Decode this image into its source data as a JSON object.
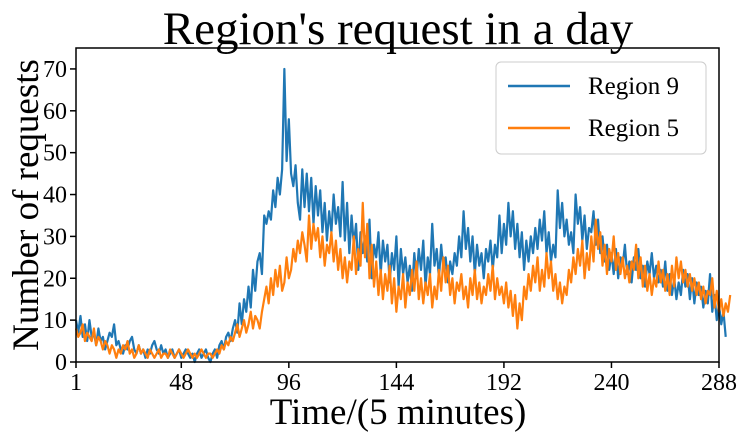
{
  "chart_data": {
    "type": "line",
    "title": "Region's request in a day",
    "xlabel": "Time/(5 minutes)",
    "ylabel": "Number of requests",
    "xlim": [
      1,
      288
    ],
    "ylim": [
      0,
      75
    ],
    "xticks": [
      1,
      48,
      96,
      144,
      192,
      240,
      288
    ],
    "yticks": [
      0,
      10,
      20,
      30,
      40,
      50,
      60,
      70
    ],
    "grid": false,
    "legend_position": "top-right",
    "colors": {
      "Region 9": "#1f77b4",
      "Region 5": "#ff7f0e"
    },
    "series": [
      {
        "name": "Region 9",
        "values": [
          10,
          7,
          11,
          6,
          9,
          5,
          10,
          6,
          7,
          4,
          8,
          5,
          6,
          3,
          5,
          7,
          6,
          9,
          4,
          5,
          3,
          2,
          4,
          3,
          5,
          6,
          3,
          2,
          4,
          2,
          3,
          1,
          3,
          2,
          4,
          5,
          3,
          2,
          4,
          2,
          3,
          1,
          2,
          3,
          1,
          2,
          3,
          1,
          2,
          3,
          2,
          1,
          2,
          0,
          2,
          3,
          1,
          2,
          3,
          1,
          0,
          2,
          3,
          1,
          4,
          5,
          3,
          6,
          7,
          5,
          8,
          10,
          7,
          14,
          9,
          15,
          12,
          18,
          13,
          22,
          17,
          24,
          26,
          21,
          35,
          33,
          36,
          34,
          41,
          37,
          44,
          40,
          46,
          70,
          48,
          58,
          45,
          42,
          47,
          38,
          34,
          46,
          37,
          45,
          36,
          44,
          33,
          42,
          35,
          41,
          31,
          38,
          29,
          36,
          31,
          40,
          33,
          37,
          30,
          43,
          29,
          38,
          26,
          35,
          28,
          33,
          22,
          31,
          26,
          30,
          24,
          34,
          20,
          28,
          25,
          31,
          21,
          29,
          24,
          28,
          19,
          26,
          22,
          30,
          18,
          27,
          21,
          25,
          19,
          23,
          17,
          26,
          20,
          27,
          22,
          29,
          18,
          25,
          21,
          33,
          23,
          27,
          20,
          28,
          22,
          25,
          19,
          24,
          21,
          26,
          23,
          30,
          25,
          36,
          27,
          32,
          24,
          30,
          21,
          28,
          23,
          26,
          20,
          27,
          24,
          29,
          22,
          28,
          25,
          35,
          26,
          33,
          28,
          38,
          30,
          36,
          27,
          33,
          25,
          31,
          22,
          29,
          24,
          30,
          26,
          32,
          27,
          34,
          29,
          36,
          26,
          31,
          24,
          28,
          25,
          41,
          32,
          38,
          30,
          34,
          28,
          31,
          26,
          40,
          33,
          37,
          29,
          35,
          27,
          32,
          31,
          36,
          28,
          34,
          26,
          30,
          24,
          28,
          22,
          26,
          21,
          27,
          20,
          25,
          23,
          28,
          21,
          24,
          19,
          25,
          22,
          27,
          20,
          23,
          18,
          24,
          21,
          26,
          20,
          23,
          19,
          22,
          18,
          24,
          17,
          21,
          16,
          20,
          15,
          19,
          16,
          22,
          18,
          21,
          15,
          20,
          14,
          19,
          16,
          18,
          13,
          17,
          14,
          21,
          12,
          16,
          10,
          14,
          9,
          12,
          6
        ]
      },
      {
        "name": "Region 5",
        "values": [
          8,
          6,
          7,
          9,
          5,
          7,
          6,
          5,
          8,
          4,
          6,
          5,
          3,
          5,
          4,
          2,
          4,
          3,
          1,
          3,
          2,
          4,
          3,
          5,
          2,
          3,
          1,
          2,
          4,
          2,
          3,
          2,
          1,
          3,
          2,
          1,
          2,
          3,
          1,
          2,
          2,
          1,
          3,
          2,
          1,
          2,
          3,
          2,
          1,
          2,
          3,
          2,
          1,
          2,
          1,
          2,
          3,
          2,
          1,
          2,
          2,
          1,
          2,
          3,
          2,
          4,
          3,
          5,
          4,
          6,
          5,
          7,
          9,
          6,
          8,
          10,
          7,
          9,
          12,
          8,
          11,
          10,
          8,
          12,
          15,
          18,
          14,
          20,
          16,
          22,
          18,
          23,
          17,
          19,
          25,
          20,
          22,
          27,
          24,
          29,
          26,
          31,
          28,
          24,
          35,
          27,
          33,
          29,
          32,
          25,
          30,
          23,
          28,
          26,
          31,
          24,
          29,
          22,
          27,
          20,
          25,
          19,
          24,
          22,
          30,
          21,
          27,
          23,
          38,
          25,
          33,
          20,
          28,
          18,
          24,
          16,
          22,
          15,
          21,
          17,
          23,
          14,
          20,
          12,
          18,
          15,
          21,
          13,
          19,
          16,
          22,
          17,
          24,
          15,
          20,
          14,
          19,
          16,
          21,
          13,
          18,
          15,
          22,
          17,
          25,
          19,
          23,
          16,
          20,
          14,
          19,
          17,
          21,
          15,
          18,
          13,
          20,
          16,
          22,
          15,
          19,
          14,
          18,
          16,
          21,
          17,
          23,
          15,
          20,
          16,
          18,
          14,
          19,
          13,
          17,
          11,
          16,
          8,
          14,
          10,
          18,
          15,
          21,
          17,
          23,
          19,
          25,
          17,
          22,
          18,
          26,
          20,
          24,
          17,
          21,
          15,
          19,
          14,
          18,
          16,
          22,
          19,
          25,
          21,
          27,
          23,
          29,
          20,
          26,
          22,
          30,
          24,
          34,
          27,
          31,
          23,
          28,
          21,
          27,
          24,
          30,
          22,
          26,
          21,
          25,
          20,
          23,
          19,
          24,
          22,
          28,
          20,
          25,
          18,
          23,
          17,
          21,
          16,
          20,
          18,
          24,
          19,
          22,
          17,
          21,
          16,
          23,
          18,
          25,
          20,
          24,
          19,
          22,
          18,
          21,
          17,
          20,
          16,
          19,
          15,
          18,
          14,
          17,
          16,
          20,
          13,
          17,
          12,
          15,
          11,
          14,
          12,
          16
        ]
      }
    ]
  }
}
